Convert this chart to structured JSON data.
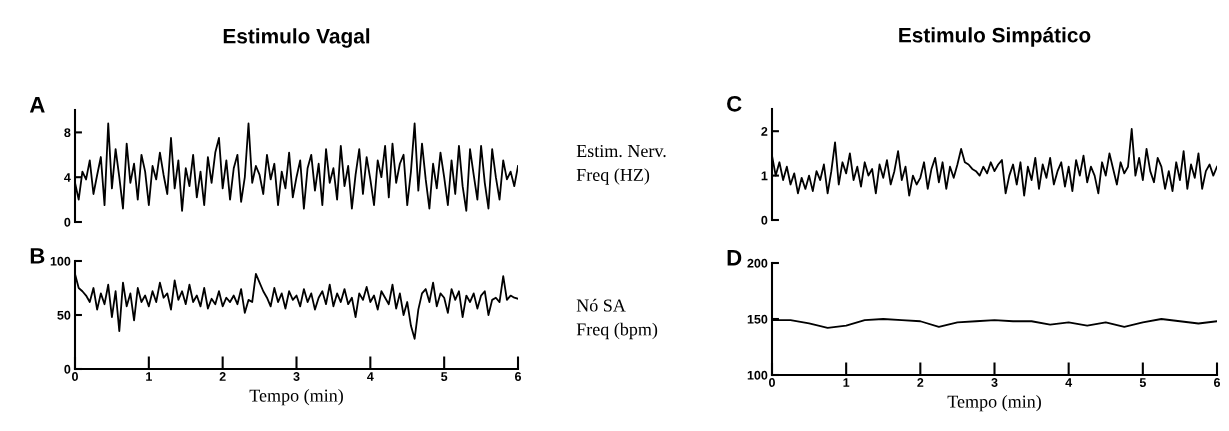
{
  "chart_data": [
    {
      "type": "line",
      "title": "Estimulo Vagal",
      "annotations": [
        "A"
      ],
      "xlim": [
        0,
        6
      ],
      "ylim": [
        0,
        10
      ],
      "yticks": [
        0,
        4,
        8
      ],
      "tick_labels": "y",
      "grid": false,
      "x": [
        0,
        0.05,
        0.1,
        0.15,
        0.2,
        0.25,
        0.3,
        0.35,
        0.4,
        0.45,
        0.5,
        0.55,
        0.6,
        0.65,
        0.7,
        0.75,
        0.8,
        0.85,
        0.9,
        0.95,
        1,
        1.05,
        1.1,
        1.15,
        1.2,
        1.25,
        1.3,
        1.35,
        1.4,
        1.45,
        1.5,
        1.55,
        1.6,
        1.65,
        1.7,
        1.75,
        1.8,
        1.85,
        1.9,
        1.95,
        2,
        2.05,
        2.1,
        2.15,
        2.2,
        2.25,
        2.3,
        2.35,
        2.4,
        2.45,
        2.5,
        2.55,
        2.6,
        2.65,
        2.7,
        2.75,
        2.8,
        2.85,
        2.9,
        2.95,
        3,
        3.05,
        3.1,
        3.15,
        3.2,
        3.25,
        3.3,
        3.35,
        3.4,
        3.45,
        3.5,
        3.55,
        3.6,
        3.65,
        3.7,
        3.75,
        3.8,
        3.85,
        3.9,
        3.95,
        4,
        4.05,
        4.1,
        4.15,
        4.2,
        4.25,
        4.3,
        4.35,
        4.4,
        4.45,
        4.5,
        4.55,
        4.6,
        4.65,
        4.7,
        4.75,
        4.8,
        4.85,
        4.9,
        4.95,
        5,
        5.05,
        5.1,
        5.15,
        5.2,
        5.25,
        5.3,
        5.35,
        5.4,
        5.45,
        5.5,
        5.55,
        5.6,
        5.65,
        5.7,
        5.75,
        5.8,
        5.85,
        5.9,
        5.95,
        6
      ],
      "series": [
        {
          "color": "#000000",
          "values": [
            3.5,
            2.0,
            4.5,
            3.8,
            5.5,
            2.5,
            4.2,
            5.8,
            1.5,
            8.8,
            3.0,
            6.5,
            4.0,
            1.2,
            7.0,
            3.5,
            5.2,
            2.0,
            6.0,
            4.5,
            1.5,
            5.0,
            3.8,
            6.2,
            4.2,
            2.5,
            7.5,
            3.0,
            5.5,
            1.0,
            4.8,
            3.2,
            6.0,
            2.2,
            4.5,
            1.5,
            5.8,
            3.5,
            6.2,
            7.5,
            3.0,
            5.5,
            2.0,
            4.8,
            6.0,
            1.8,
            4.0,
            8.8,
            3.5,
            5.0,
            4.2,
            2.5,
            6.0,
            3.8,
            5.2,
            1.5,
            4.5,
            3.0,
            6.2,
            2.2,
            4.0,
            5.5,
            1.2,
            4.8,
            6.0,
            2.8,
            5.2,
            1.5,
            6.5,
            3.5,
            4.8,
            2.0,
            6.8,
            3.2,
            5.0,
            1.2,
            4.2,
            6.5,
            2.5,
            5.8,
            3.8,
            1.5,
            5.5,
            4.0,
            6.8,
            2.2,
            7.0,
            3.5,
            5.2,
            6.0,
            1.5,
            4.5,
            8.8,
            2.8,
            7.0,
            3.8,
            1.2,
            5.2,
            3.0,
            6.2,
            4.0,
            1.5,
            5.5,
            2.5,
            6.8,
            3.2,
            1.0,
            6.5,
            4.2,
            2.0,
            6.8,
            3.5,
            1.2,
            6.5,
            4.0,
            2.0,
            5.5,
            3.8,
            4.5,
            3.2,
            5.0
          ]
        }
      ]
    },
    {
      "type": "line",
      "annotations": [
        "B"
      ],
      "xlabel": "Tempo (min)",
      "xlim": [
        0,
        6
      ],
      "xticks": [
        0,
        1,
        2,
        3,
        4,
        5,
        6
      ],
      "ylim": [
        0,
        100
      ],
      "yticks": [
        0,
        50,
        100
      ],
      "grid": false,
      "x": [
        0,
        0.05,
        0.1,
        0.15,
        0.2,
        0.25,
        0.3,
        0.35,
        0.4,
        0.45,
        0.5,
        0.55,
        0.6,
        0.65,
        0.7,
        0.75,
        0.8,
        0.85,
        0.9,
        0.95,
        1,
        1.05,
        1.1,
        1.15,
        1.2,
        1.25,
        1.3,
        1.35,
        1.4,
        1.45,
        1.5,
        1.55,
        1.6,
        1.65,
        1.7,
        1.75,
        1.8,
        1.85,
        1.9,
        1.95,
        2,
        2.05,
        2.1,
        2.15,
        2.2,
        2.25,
        2.3,
        2.35,
        2.4,
        2.45,
        2.5,
        2.55,
        2.6,
        2.65,
        2.7,
        2.75,
        2.8,
        2.85,
        2.9,
        2.95,
        3,
        3.05,
        3.1,
        3.15,
        3.2,
        3.25,
        3.3,
        3.35,
        3.4,
        3.45,
        3.5,
        3.55,
        3.6,
        3.65,
        3.7,
        3.75,
        3.8,
        3.85,
        3.9,
        3.95,
        4,
        4.05,
        4.1,
        4.15,
        4.2,
        4.25,
        4.3,
        4.35,
        4.4,
        4.45,
        4.5,
        4.55,
        4.6,
        4.65,
        4.7,
        4.75,
        4.8,
        4.85,
        4.9,
        4.95,
        5,
        5.05,
        5.1,
        5.15,
        5.2,
        5.25,
        5.3,
        5.35,
        5.4,
        5.45,
        5.5,
        5.55,
        5.6,
        5.65,
        5.7,
        5.75,
        5.8,
        5.85,
        5.9,
        5.95,
        6
      ],
      "series": [
        {
          "color": "#000000",
          "values": [
            88,
            75,
            72,
            68,
            62,
            75,
            55,
            70,
            60,
            78,
            48,
            72,
            35,
            80,
            58,
            70,
            45,
            75,
            62,
            68,
            58,
            72,
            62,
            80,
            66,
            70,
            55,
            82,
            64,
            72,
            60,
            78,
            62,
            68,
            58,
            75,
            56,
            65,
            60,
            72,
            58,
            66,
            62,
            68,
            60,
            74,
            52,
            64,
            62,
            88,
            80,
            72,
            66,
            58,
            75,
            62,
            70,
            56,
            72,
            64,
            68,
            58,
            74,
            62,
            70,
            55,
            66,
            72,
            60,
            78,
            58,
            70,
            62,
            74,
            60,
            66,
            48,
            70,
            64,
            76,
            62,
            68,
            55,
            72,
            66,
            60,
            78,
            56,
            70,
            50,
            62,
            40,
            28,
            55,
            70,
            74,
            62,
            80,
            58,
            70,
            66,
            52,
            74,
            64,
            72,
            48,
            68,
            62,
            70,
            56,
            68,
            72,
            50,
            64,
            66,
            62,
            86,
            64,
            68,
            66,
            65
          ]
        }
      ]
    },
    {
      "type": "line",
      "title": "Estimulo Simpático",
      "ylabel": "Estim. Nerv.\nFreq (HZ)",
      "annotations": [
        "C"
      ],
      "xlim": [
        0,
        6
      ],
      "ylim": [
        0,
        2.5
      ],
      "yticks": [
        0,
        1,
        2
      ],
      "tick_labels": "y",
      "grid": false,
      "x": [
        0,
        0.05,
        0.1,
        0.15,
        0.2,
        0.25,
        0.3,
        0.35,
        0.4,
        0.45,
        0.5,
        0.55,
        0.6,
        0.65,
        0.7,
        0.75,
        0.8,
        0.85,
        0.9,
        0.95,
        1,
        1.05,
        1.1,
        1.15,
        1.2,
        1.25,
        1.3,
        1.35,
        1.4,
        1.45,
        1.5,
        1.55,
        1.6,
        1.65,
        1.7,
        1.75,
        1.8,
        1.85,
        1.9,
        1.95,
        2,
        2.05,
        2.1,
        2.15,
        2.2,
        2.25,
        2.3,
        2.35,
        2.4,
        2.45,
        2.5,
        2.55,
        2.6,
        2.65,
        2.7,
        2.75,
        2.8,
        2.85,
        2.9,
        2.95,
        3,
        3.05,
        3.1,
        3.15,
        3.2,
        3.25,
        3.3,
        3.35,
        3.4,
        3.45,
        3.5,
        3.55,
        3.6,
        3.65,
        3.7,
        3.75,
        3.8,
        3.85,
        3.9,
        3.95,
        4,
        4.05,
        4.1,
        4.15,
        4.2,
        4.25,
        4.3,
        4.35,
        4.4,
        4.45,
        4.5,
        4.55,
        4.6,
        4.65,
        4.7,
        4.75,
        4.8,
        4.85,
        4.9,
        4.95,
        5,
        5.05,
        5.1,
        5.15,
        5.2,
        5.25,
        5.3,
        5.35,
        5.4,
        5.45,
        5.5,
        5.55,
        5.6,
        5.65,
        5.7,
        5.75,
        5.8,
        5.85,
        5.9,
        5.95,
        6
      ],
      "series": [
        {
          "color": "#000000",
          "values": [
            1.45,
            1.0,
            1.3,
            0.9,
            1.2,
            0.8,
            1.05,
            0.6,
            0.95,
            0.7,
            1.0,
            0.65,
            1.1,
            0.9,
            1.25,
            0.6,
            1.1,
            1.75,
            0.8,
            1.3,
            1.05,
            1.5,
            0.9,
            1.2,
            0.75,
            1.3,
            1.0,
            1.15,
            0.6,
            1.25,
            0.95,
            1.35,
            0.8,
            1.1,
            1.55,
            0.9,
            1.2,
            0.55,
            1.0,
            0.8,
            0.95,
            1.3,
            0.7,
            1.15,
            1.4,
            0.85,
            1.3,
            0.7,
            1.2,
            0.95,
            1.25,
            1.6,
            1.3,
            1.25,
            1.15,
            1.1,
            1.0,
            1.2,
            1.05,
            1.3,
            1.1,
            1.25,
            1.35,
            0.6,
            1.0,
            1.25,
            0.8,
            1.3,
            0.55,
            1.2,
            0.9,
            1.4,
            0.7,
            1.25,
            0.95,
            1.4,
            0.8,
            1.1,
            1.3,
            0.75,
            1.2,
            0.65,
            1.35,
            1.0,
            1.45,
            0.85,
            1.2,
            1.0,
            0.6,
            1.3,
            1.0,
            1.5,
            1.15,
            0.8,
            1.3,
            1.05,
            1.2,
            2.05,
            1.0,
            1.4,
            0.9,
            1.6,
            1.1,
            0.85,
            1.4,
            1.2,
            0.7,
            1.1,
            0.65,
            1.3,
            0.9,
            1.55,
            0.7,
            1.25,
            0.95,
            1.5,
            0.7,
            1.1,
            1.25,
            1.0,
            1.2
          ]
        }
      ]
    },
    {
      "type": "line",
      "ylabel": "Nó SA\nFreq (bpm)",
      "xlabel": "Tempo (min)",
      "annotations": [
        "D"
      ],
      "xlim": [
        0,
        6
      ],
      "xticks": [
        0,
        1,
        2,
        3,
        4,
        5,
        6
      ],
      "ylim": [
        100,
        200
      ],
      "yticks": [
        100,
        150,
        200
      ],
      "grid": false,
      "x": [
        0,
        0.25,
        0.5,
        0.75,
        1,
        1.25,
        1.5,
        1.75,
        2,
        2.25,
        2.5,
        2.75,
        3,
        3.25,
        3.5,
        3.75,
        4,
        4.25,
        4.5,
        4.75,
        5,
        5.25,
        5.5,
        5.75,
        6
      ],
      "series": [
        {
          "color": "#000000",
          "values": [
            149,
            149,
            146,
            142,
            144,
            149,
            150,
            149,
            148,
            143,
            147,
            148,
            149,
            148,
            148,
            145,
            147,
            144,
            147,
            143,
            147,
            150,
            148,
            146,
            148
          ]
        }
      ]
    }
  ]
}
